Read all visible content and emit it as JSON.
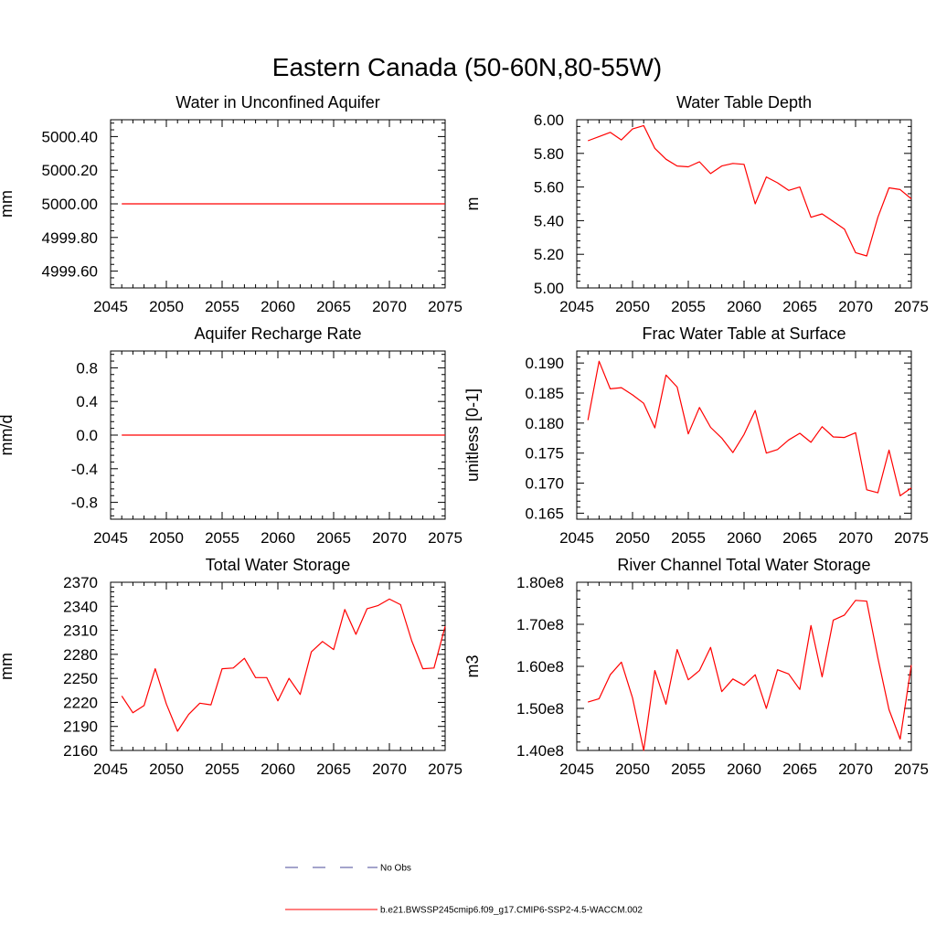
{
  "figure": {
    "title": "Eastern Canada (50-60N,80-55W)"
  },
  "legend": {
    "items": [
      {
        "label": "No Obs",
        "color": "#4a4a9a",
        "dash": true
      },
      {
        "label": "b.e21.BWSSP245cmip6.f09_g17.CMIP6-SSP2-4.5-WACCM.002",
        "color": "#ff0000",
        "dash": false
      }
    ]
  },
  "chart_data": [
    {
      "type": "line",
      "title": "Water in Unconfined Aquifer",
      "xlabel": "",
      "ylabel": "mm",
      "xlim": [
        2045,
        2075
      ],
      "ylim": [
        4999.5,
        5000.5
      ],
      "xticks": [
        2045,
        2050,
        2055,
        2060,
        2065,
        2070,
        2075
      ],
      "xtick_labels": [
        "2045",
        "2050",
        "2055",
        "2060",
        "2065",
        "2070",
        "2075"
      ],
      "yticks": [
        4999.6,
        4999.8,
        5000.0,
        5000.2,
        5000.4
      ],
      "ytick_labels": [
        "4999.60",
        "4999.80",
        "5000.00",
        "5000.20",
        "5000.40"
      ],
      "series": [
        {
          "name": "b.e21.BWSSP245cmip6.f09_g17.CMIP6-SSP2-4.5-WACCM.002",
          "color": "#ff0000",
          "x": [
            2046,
            2075
          ],
          "values": [
            5000.0,
            5000.0
          ]
        }
      ]
    },
    {
      "type": "line",
      "title": "Water Table Depth",
      "xlabel": "",
      "ylabel": "m",
      "xlim": [
        2045,
        2075
      ],
      "ylim": [
        5.0,
        6.0
      ],
      "xticks": [
        2045,
        2050,
        2055,
        2060,
        2065,
        2070,
        2075
      ],
      "xtick_labels": [
        "2045",
        "2050",
        "2055",
        "2060",
        "2065",
        "2070",
        "2075"
      ],
      "yticks": [
        5.0,
        5.2,
        5.4,
        5.6,
        5.8,
        6.0
      ],
      "ytick_labels": [
        "5.00",
        "5.20",
        "5.40",
        "5.60",
        "5.80",
        "6.00"
      ],
      "series": [
        {
          "name": "b.e21.BWSSP245cmip6.f09_g17.CMIP6-SSP2-4.5-WACCM.002",
          "color": "#ff0000",
          "x": [
            2046,
            2047,
            2048,
            2049,
            2050,
            2051,
            2052,
            2053,
            2054,
            2055,
            2056,
            2057,
            2058,
            2059,
            2060,
            2061,
            2062,
            2063,
            2064,
            2065,
            2066,
            2067,
            2068,
            2069,
            2070,
            2071,
            2072,
            2073,
            2074,
            2075
          ],
          "values": [
            5.875,
            5.9,
            5.925,
            5.88,
            5.945,
            5.965,
            5.83,
            5.765,
            5.725,
            5.72,
            5.75,
            5.68,
            5.725,
            5.74,
            5.735,
            5.5,
            5.66,
            5.625,
            5.58,
            5.6,
            5.42,
            5.44,
            5.395,
            5.35,
            5.21,
            5.19,
            5.42,
            5.595,
            5.585,
            5.53
          ]
        }
      ]
    },
    {
      "type": "line",
      "title": "Aquifer Recharge Rate",
      "xlabel": "",
      "ylabel": "mm/d",
      "xlim": [
        2045,
        2075
      ],
      "ylim": [
        -1.0,
        1.0
      ],
      "xticks": [
        2045,
        2050,
        2055,
        2060,
        2065,
        2070,
        2075
      ],
      "xtick_labels": [
        "2045",
        "2050",
        "2055",
        "2060",
        "2065",
        "2070",
        "2075"
      ],
      "yticks": [
        -0.8,
        -0.4,
        0.0,
        0.4,
        0.8
      ],
      "ytick_labels": [
        "-0.8",
        "-0.4",
        "0.0",
        "0.4",
        "0.8"
      ],
      "series": [
        {
          "name": "b.e21.BWSSP245cmip6.f09_g17.CMIP6-SSP2-4.5-WACCM.002",
          "color": "#ff0000",
          "x": [
            2046,
            2075
          ],
          "values": [
            0.0,
            0.0
          ]
        }
      ]
    },
    {
      "type": "line",
      "title": "Frac Water Table at Surface",
      "xlabel": "",
      "ylabel": "unitless [0-1]",
      "xlim": [
        2045,
        2075
      ],
      "ylim": [
        0.164,
        0.192
      ],
      "xticks": [
        2045,
        2050,
        2055,
        2060,
        2065,
        2070,
        2075
      ],
      "xtick_labels": [
        "2045",
        "2050",
        "2055",
        "2060",
        "2065",
        "2070",
        "2075"
      ],
      "yticks": [
        0.165,
        0.17,
        0.175,
        0.18,
        0.185,
        0.19
      ],
      "ytick_labels": [
        "0.165",
        "0.170",
        "0.175",
        "0.180",
        "0.185",
        "0.190"
      ],
      "series": [
        {
          "name": "b.e21.BWSSP245cmip6.f09_g17.CMIP6-SSP2-4.5-WACCM.002",
          "color": "#ff0000",
          "x": [
            2046,
            2047,
            2048,
            2049,
            2050,
            2051,
            2052,
            2053,
            2054,
            2055,
            2056,
            2057,
            2058,
            2059,
            2060,
            2061,
            2062,
            2063,
            2064,
            2065,
            2066,
            2067,
            2068,
            2069,
            2070,
            2071,
            2072,
            2073,
            2074,
            2075
          ],
          "values": [
            0.1805,
            0.1903,
            0.1857,
            0.1859,
            0.1847,
            0.1833,
            0.1792,
            0.188,
            0.186,
            0.1782,
            0.1826,
            0.1793,
            0.1775,
            0.1751,
            0.1781,
            0.1821,
            0.175,
            0.1756,
            0.1772,
            0.1783,
            0.1768,
            0.1794,
            0.1777,
            0.1776,
            0.1784,
            0.1689,
            0.1684,
            0.1755,
            0.1679,
            0.1692
          ]
        }
      ]
    },
    {
      "type": "line",
      "title": "Total Water Storage",
      "xlabel": "",
      "ylabel": "mm",
      "xlim": [
        2045,
        2075
      ],
      "ylim": [
        2160,
        2370
      ],
      "xticks": [
        2045,
        2050,
        2055,
        2060,
        2065,
        2070,
        2075
      ],
      "xtick_labels": [
        "2045",
        "2050",
        "2055",
        "2060",
        "2065",
        "2070",
        "2075"
      ],
      "yticks": [
        2160,
        2190,
        2220,
        2250,
        2280,
        2310,
        2340,
        2370
      ],
      "ytick_labels": [
        "2160",
        "2190",
        "2220",
        "2250",
        "2280",
        "2310",
        "2340",
        "2370"
      ],
      "series": [
        {
          "name": "b.e21.BWSSP245cmip6.f09_g17.CMIP6-SSP2-4.5-WACCM.002",
          "color": "#ff0000",
          "x": [
            2046,
            2047,
            2048,
            2049,
            2050,
            2051,
            2052,
            2053,
            2054,
            2055,
            2056,
            2057,
            2058,
            2059,
            2060,
            2061,
            2062,
            2063,
            2064,
            2065,
            2066,
            2067,
            2068,
            2069,
            2070,
            2071,
            2072,
            2073,
            2074,
            2075
          ],
          "values": [
            2228,
            2207,
            2216,
            2262,
            2218,
            2184,
            2205,
            2219,
            2217,
            2262,
            2263,
            2275,
            2251,
            2251,
            2222,
            2250,
            2230,
            2283,
            2296,
            2286,
            2336,
            2305,
            2337,
            2341,
            2349,
            2342,
            2297,
            2262,
            2263,
            2315
          ]
        }
      ]
    },
    {
      "type": "line",
      "title": "River Channel Total Water Storage",
      "xlabel": "",
      "ylabel": "m3",
      "xlim": [
        2045,
        2075
      ],
      "ylim": [
        140000000,
        180000000
      ],
      "xticks": [
        2045,
        2050,
        2055,
        2060,
        2065,
        2070,
        2075
      ],
      "xtick_labels": [
        "2045",
        "2050",
        "2055",
        "2060",
        "2065",
        "2070",
        "2075"
      ],
      "yticks": [
        140000000,
        150000000,
        160000000,
        170000000,
        180000000
      ],
      "ytick_labels": [
        "1.40e8",
        "1.50e8",
        "1.60e8",
        "1.70e8",
        "1.80e8"
      ],
      "series": [
        {
          "name": "b.e21.BWSSP245cmip6.f09_g17.CMIP6-SSP2-4.5-WACCM.002",
          "color": "#ff0000",
          "x": [
            2046,
            2047,
            2048,
            2049,
            2050,
            2051,
            2052,
            2053,
            2054,
            2055,
            2056,
            2057,
            2058,
            2059,
            2060,
            2061,
            2062,
            2063,
            2064,
            2065,
            2066,
            2067,
            2068,
            2069,
            2070,
            2071,
            2072,
            2073,
            2074,
            2075
          ],
          "values": [
            151500000,
            152300000,
            158000000,
            161000000,
            152500000,
            140000000,
            159000000,
            151000000,
            164000000,
            156800000,
            159000000,
            164500000,
            154000000,
            157000000,
            155500000,
            158000000,
            150000000,
            159200000,
            158200000,
            154500000,
            169700000,
            157500000,
            171000000,
            172200000,
            175700000,
            175500000,
            162000000,
            149700000,
            142700000,
            160300000
          ]
        }
      ]
    }
  ]
}
